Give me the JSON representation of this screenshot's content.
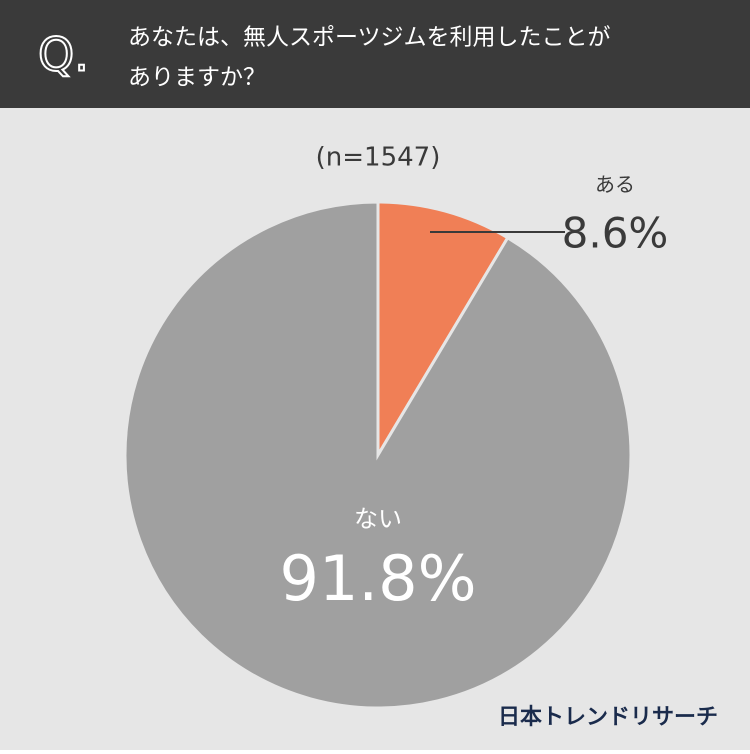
{
  "header": {
    "mark": "Q.",
    "lines": [
      "あなたは、無人スポーツジムを利用したことが",
      "ありますか？"
    ]
  },
  "chart_data": {
    "type": "pie",
    "subtitle": "(n=1547)",
    "categories": [
      "ある",
      "ない"
    ],
    "values": [
      8.6,
      91.8
    ],
    "value_labels": [
      "8.6%",
      "91.8%"
    ],
    "colors": [
      "#f07f56",
      "#a0a0a0"
    ]
  },
  "footer": {
    "brand": "日本トレンドリサーチ"
  }
}
